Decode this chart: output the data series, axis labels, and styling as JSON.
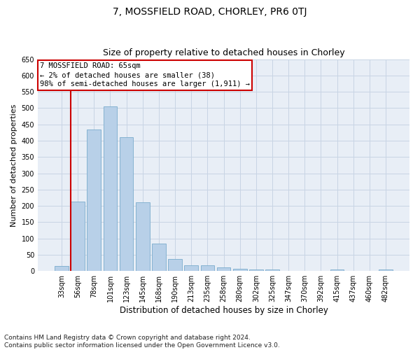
{
  "title": "7, MOSSFIELD ROAD, CHORLEY, PR6 0TJ",
  "subtitle": "Size of property relative to detached houses in Chorley",
  "xlabel": "Distribution of detached houses by size in Chorley",
  "ylabel": "Number of detached properties",
  "categories": [
    "33sqm",
    "56sqm",
    "78sqm",
    "101sqm",
    "123sqm",
    "145sqm",
    "168sqm",
    "190sqm",
    "213sqm",
    "235sqm",
    "258sqm",
    "280sqm",
    "302sqm",
    "325sqm",
    "347sqm",
    "370sqm",
    "392sqm",
    "415sqm",
    "437sqm",
    "460sqm",
    "482sqm"
  ],
  "values": [
    15,
    213,
    435,
    505,
    410,
    210,
    85,
    38,
    18,
    17,
    11,
    6,
    4,
    4,
    1,
    1,
    1,
    4,
    0,
    0,
    5
  ],
  "bar_color": "#b8d0e8",
  "bar_edge_color": "#7aabcc",
  "grid_color": "#c8d4e4",
  "background_color": "#e8eef6",
  "vline_color": "#cc0000",
  "vline_x_index": 1,
  "annotation_text": "7 MOSSFIELD ROAD: 65sqm\n← 2% of detached houses are smaller (38)\n98% of semi-detached houses are larger (1,911) →",
  "annotation_box_color": "#cc0000",
  "ylim": [
    0,
    650
  ],
  "yticks": [
    0,
    50,
    100,
    150,
    200,
    250,
    300,
    350,
    400,
    450,
    500,
    550,
    600,
    650
  ],
  "footnote": "Contains HM Land Registry data © Crown copyright and database right 2024.\nContains public sector information licensed under the Open Government Licence v3.0.",
  "title_fontsize": 10,
  "subtitle_fontsize": 9,
  "ylabel_fontsize": 8,
  "xlabel_fontsize": 8.5,
  "tick_fontsize": 7,
  "annot_fontsize": 7.5,
  "footnote_fontsize": 6.5
}
